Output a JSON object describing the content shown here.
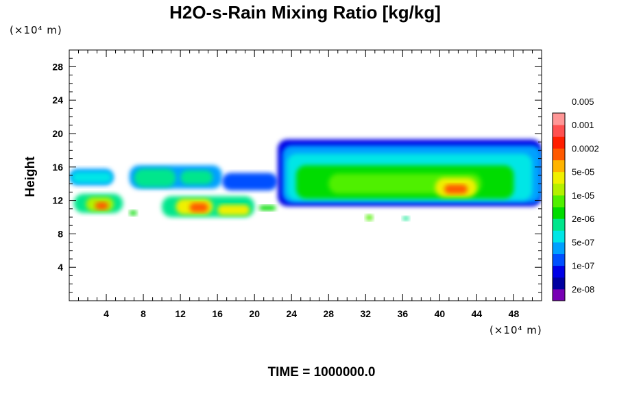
{
  "chart_data": {
    "type": "heatmap",
    "title": "H2O-s-Rain Mixing Ratio [kg/kg]",
    "ylabel": "Height",
    "y_unit_label": "(×10⁴ m)",
    "x_unit_label": "(×10⁴ m)",
    "xlim": [
      0,
      51
    ],
    "ylim": [
      0,
      30
    ],
    "x_ticks": [
      4,
      8,
      12,
      16,
      20,
      24,
      28,
      32,
      36,
      40,
      44,
      48
    ],
    "y_ticks": [
      4,
      8,
      12,
      16,
      20,
      24,
      28
    ],
    "footer": "TIME = 1000000.0",
    "colorbar": {
      "colors": [
        "#7800b4",
        "#0000a0",
        "#0000e6",
        "#0050ff",
        "#00a0ff",
        "#00e6e6",
        "#00e68c",
        "#00dc00",
        "#50f000",
        "#b4f000",
        "#f0f000",
        "#ffb400",
        "#ff5a00",
        "#ff1e00",
        "#ff5050",
        "#ff9696"
      ],
      "labels": [
        "2e-08",
        "1e-07",
        "5e-07",
        "2e-06",
        "1e-05",
        "5e-05",
        "0.0002",
        "0.001",
        "0.005"
      ]
    },
    "regions": [
      {
        "x": [
          0.0,
          4.8
        ],
        "y": [
          13.8,
          15.8
        ],
        "level": 4
      },
      {
        "x": [
          0.3,
          4.6
        ],
        "y": [
          14.1,
          15.4
        ],
        "level": 5
      },
      {
        "x": [
          6.5,
          16.5
        ],
        "y": [
          13.4,
          16.2
        ],
        "level": 4
      },
      {
        "x": [
          7.0,
          11.5
        ],
        "y": [
          13.6,
          15.8
        ],
        "level": 6
      },
      {
        "x": [
          12.0,
          15.5
        ],
        "y": [
          13.9,
          15.6
        ],
        "level": 6
      },
      {
        "x": [
          16.5,
          22.5
        ],
        "y": [
          13.2,
          15.3
        ],
        "level": 3
      },
      {
        "x": [
          0.5,
          5.8
        ],
        "y": [
          10.5,
          12.8
        ],
        "level": 6
      },
      {
        "x": [
          1.8,
          4.8
        ],
        "y": [
          10.7,
          12.4
        ],
        "level": 9
      },
      {
        "x": [
          2.8,
          4.2
        ],
        "y": [
          10.9,
          11.8
        ],
        "level": 12
      },
      {
        "x": [
          10.0,
          20.0
        ],
        "y": [
          10.0,
          12.5
        ],
        "level": 6
      },
      {
        "x": [
          11.5,
          15.5
        ],
        "y": [
          10.3,
          12.2
        ],
        "level": 10
      },
      {
        "x": [
          13.0,
          15.0
        ],
        "y": [
          10.6,
          11.7
        ],
        "level": 12
      },
      {
        "x": [
          16.0,
          19.5
        ],
        "y": [
          10.2,
          11.5
        ],
        "level": 10
      },
      {
        "x": [
          20.5,
          22.3
        ],
        "y": [
          10.8,
          11.4
        ],
        "level": 7
      },
      {
        "x": [
          6.5,
          7.3
        ],
        "y": [
          10.2,
          10.8
        ],
        "level": 7
      },
      {
        "x": [
          32.0,
          32.8
        ],
        "y": [
          9.6,
          10.3
        ],
        "level": 8
      },
      {
        "x": [
          36.0,
          36.7
        ],
        "y": [
          9.6,
          10.1
        ],
        "level": 6
      },
      {
        "x": [
          22.5,
          51.0
        ],
        "y": [
          11.3,
          19.3
        ],
        "level": 2
      },
      {
        "x": [
          23.0,
          51.0
        ],
        "y": [
          11.7,
          18.6
        ],
        "level": 4
      },
      {
        "x": [
          23.5,
          50.0
        ],
        "y": [
          12.0,
          17.6
        ],
        "level": 5
      },
      {
        "x": [
          24.5,
          48.0
        ],
        "y": [
          12.2,
          16.2
        ],
        "level": 7
      },
      {
        "x": [
          28.0,
          44.5
        ],
        "y": [
          12.8,
          15.2
        ],
        "level": 8
      },
      {
        "x": [
          39.5,
          44.0
        ],
        "y": [
          12.4,
          14.7
        ],
        "level": 10
      },
      {
        "x": [
          40.5,
          43.0
        ],
        "y": [
          12.8,
          13.9
        ],
        "level": 12
      }
    ]
  }
}
